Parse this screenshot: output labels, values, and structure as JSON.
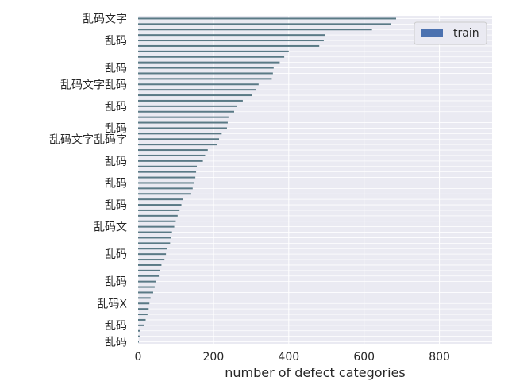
{
  "chart_data": {
    "type": "bar",
    "orientation": "horizontal",
    "title": "",
    "xlabel": "number of defect categories",
    "ylabel": "",
    "xlim": [
      0,
      940
    ],
    "xticks": [
      0,
      200,
      400,
      600,
      800
    ],
    "grid": true,
    "legend": {
      "position": "top-right",
      "entries": [
        "train"
      ]
    },
    "colors": {
      "bar": "#5a7a86",
      "legend_patch": "#4c72b0",
      "plot_bg": "#eaeaf2",
      "grid": "#ffffff"
    },
    "series": [
      {
        "name": "train",
        "values": [
          685,
          672,
          621,
          497,
          493,
          481,
          400,
          388,
          376,
          360,
          358,
          355,
          320,
          312,
          303,
          278,
          262,
          255,
          240,
          238,
          236,
          222,
          215,
          210,
          185,
          178,
          172,
          156,
          154,
          152,
          148,
          145,
          141,
          120,
          115,
          110,
          105,
          100,
          96,
          90,
          87,
          85,
          78,
          74,
          70,
          62,
          58,
          55,
          48,
          44,
          40,
          33,
          30,
          28,
          25,
          20,
          16,
          6,
          4,
          2
        ]
      }
    ],
    "visible_tick_labels": [
      {
        "index": 0,
        "text": "乱码文字"
      },
      {
        "index": 4,
        "text": "乱码"
      },
      {
        "index": 9,
        "text": "乱码"
      },
      {
        "index": 12,
        "text": "乱码文字乱码"
      },
      {
        "index": 16,
        "text": "乱码"
      },
      {
        "index": 20,
        "text": "乱码"
      },
      {
        "index": 22,
        "text": "乱码文字乱码字"
      },
      {
        "index": 26,
        "text": "乱码"
      },
      {
        "index": 30,
        "text": "乱码"
      },
      {
        "index": 34,
        "text": "乱码"
      },
      {
        "index": 38,
        "text": "乱码文"
      },
      {
        "index": 43,
        "text": "乱码"
      },
      {
        "index": 48,
        "text": "乱码"
      },
      {
        "index": 52,
        "text": "乱码X"
      },
      {
        "index": 56,
        "text": "乱码"
      },
      {
        "index": 59,
        "text": "乱码"
      }
    ]
  }
}
